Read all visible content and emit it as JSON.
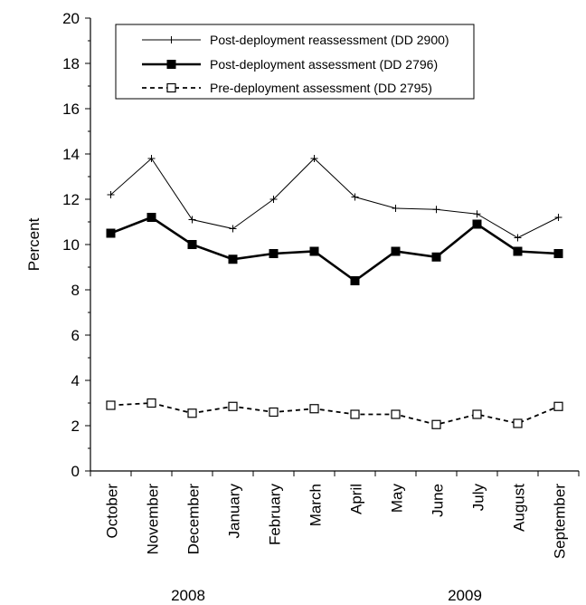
{
  "chart_data": {
    "type": "line",
    "ylabel": "Percent",
    "ylim": [
      0,
      20
    ],
    "y_ticks": [
      "0",
      "2",
      "4",
      "6",
      "8",
      "10",
      "12",
      "14",
      "16",
      "18",
      "20"
    ],
    "categories": [
      "October",
      "November",
      "December",
      "January",
      "February",
      "March",
      "April",
      "May",
      "June",
      "July",
      "August",
      "September"
    ],
    "year_labels": [
      "2008",
      "2009"
    ],
    "legend_position": "top",
    "grid": false,
    "series": [
      {
        "name": "Post-deployment reassessment (DD 2900)",
        "marker": "plus",
        "line_style": "thin solid",
        "values": [
          12.2,
          13.8,
          11.1,
          10.7,
          12.0,
          13.8,
          12.1,
          11.6,
          11.55,
          11.35,
          10.3,
          11.2
        ]
      },
      {
        "name": "Post-deployment assessment (DD 2796)",
        "marker": "filled-square",
        "line_style": "thick solid",
        "values": [
          10.5,
          11.2,
          10.0,
          9.35,
          9.6,
          9.7,
          8.4,
          9.7,
          9.45,
          10.9,
          9.7,
          9.6
        ]
      },
      {
        "name": "Pre-deployment assessment (DD 2795)",
        "marker": "open-square",
        "line_style": "dashed",
        "values": [
          2.9,
          3.0,
          2.55,
          2.85,
          2.6,
          2.75,
          2.5,
          2.5,
          2.05,
          2.5,
          2.1,
          2.85
        ]
      }
    ]
  }
}
